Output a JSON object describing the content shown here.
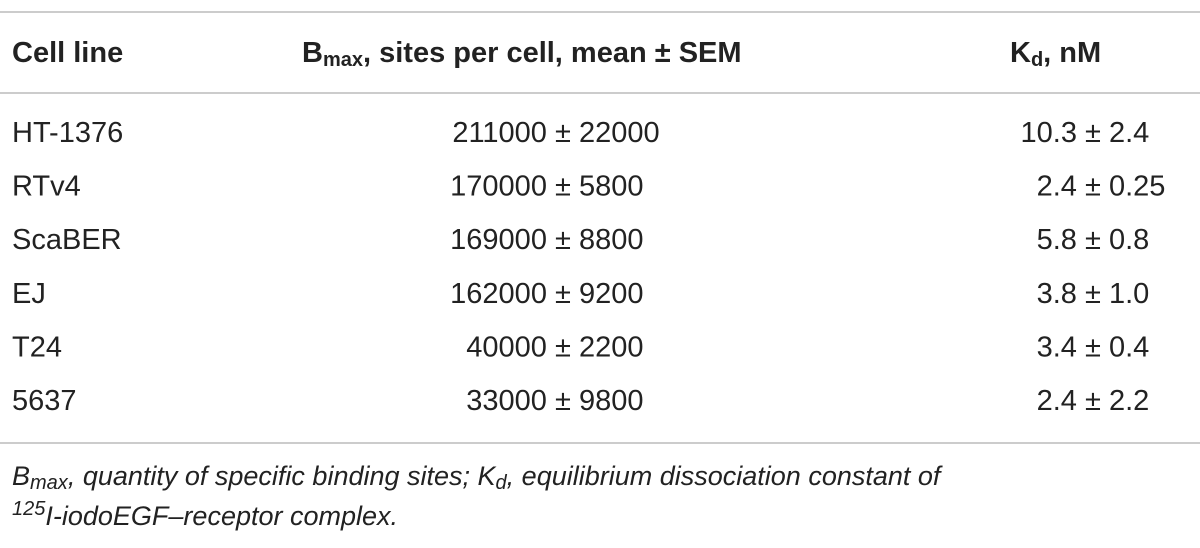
{
  "table": {
    "header": {
      "cell_line": "Cell line",
      "bmax": {
        "symbol": "B",
        "sub": "max",
        "rest": ", sites per cell, mean ± SEM"
      },
      "kd": {
        "symbol": "K",
        "sub": "d",
        "rest": ", nM"
      }
    },
    "rows": [
      [
        "HT-1376",
        "211000 ± 22000",
        "10.3 ± 2.4"
      ],
      [
        "RTv4",
        "170000 ± 5800",
        "2.4 ± 0.25"
      ],
      [
        "ScaBER",
        "169000 ± 8800",
        "5.8 ± 0.8"
      ],
      [
        "EJ",
        "162000 ± 9200",
        "3.8 ± 1.0"
      ],
      [
        "T24",
        "40000 ± 2200",
        "3.4 ± 0.4"
      ],
      [
        "5637",
        "33000 ± 9800",
        "2.4 ± 2.2"
      ]
    ],
    "footnote": {
      "b_symbol": "B",
      "b_sub": "max",
      "b_text": ", quantity of specific binding sites; K",
      "k_sub": "d",
      "k_text": ", equilibrium dissociation constant of",
      "sup": "125",
      "end": "I-iodoEGF–receptor complex."
    }
  }
}
